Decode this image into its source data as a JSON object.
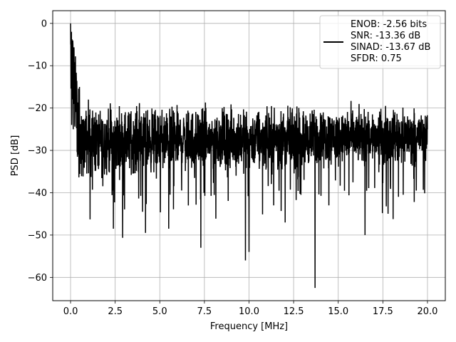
{
  "chart_data": {
    "type": "line",
    "title": "",
    "xlabel": "Frequency [MHz]",
    "ylabel": "PSD [dB]",
    "xlim": [
      -1.0,
      21.0
    ],
    "ylim": [
      -65.5,
      3.0
    ],
    "x_ticks": [
      0.0,
      2.5,
      5.0,
      7.5,
      10.0,
      12.5,
      15.0,
      17.5,
      20.0
    ],
    "x_tick_labels": [
      "0.0",
      "2.5",
      "5.0",
      "7.5",
      "10.0",
      "12.5",
      "15.0",
      "17.5",
      "20.0"
    ],
    "y_ticks": [
      0,
      -10,
      -20,
      -30,
      -40,
      -50,
      -60
    ],
    "y_tick_labels": [
      "0",
      "−10",
      "−20",
      "−30",
      "−40",
      "−50",
      "−60"
    ],
    "grid": true,
    "legend_position": "top-right",
    "line_color": "#000000",
    "series": [
      {
        "name": "ENOB: -2.56 bits\nSNR: -13.36 dB\nSINAD: -13.67 dB\nSFDR: 0.75",
        "x_range": [
          0.0,
          20.0
        ],
        "description_points": {
          "x": [
            0.0,
            0.03,
            0.06,
            0.1,
            0.15,
            0.2,
            0.3,
            0.4,
            0.5,
            1.0,
            2.4,
            4.2,
            5.5,
            7.3,
            9.8,
            10.0,
            13.7,
            16.5,
            20.0
          ],
          "y": [
            0.0,
            -14.0,
            -24.0,
            -5.0,
            -25.0,
            -8.5,
            -20.0,
            -31.0,
            -15.0,
            -18.0,
            -48.5,
            -49.5,
            -48.5,
            -53.0,
            -56.0,
            -54.0,
            -62.5,
            -50.0,
            -25.0
          ]
        }
      }
    ],
    "legend_lines": [
      "ENOB: -2.56 bits",
      "SNR: -13.36 dB",
      "SINAD: -13.67 dB",
      "SFDR: 0.75"
    ]
  }
}
